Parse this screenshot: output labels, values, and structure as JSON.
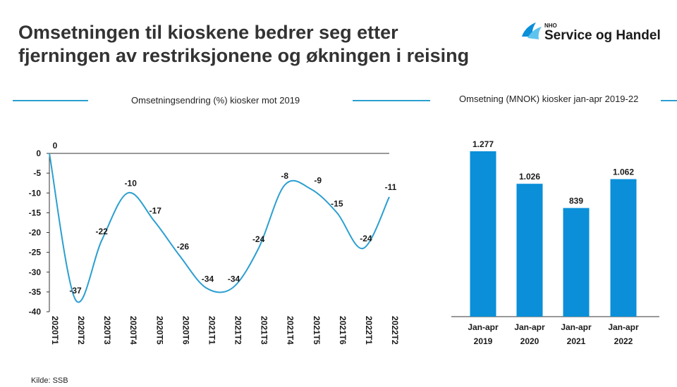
{
  "title_lines": [
    "Omsetningen til kioskene bedrer seg etter",
    "fjerningen av restriksjonene og økningen i reising"
  ],
  "logo": {
    "small": "NHO",
    "name": "Service og Handel"
  },
  "source": "Kilde: SSB",
  "colors": {
    "line": "#2b9fd0",
    "bar": "#0a8fd8",
    "text": "#1a1a1a"
  },
  "chart_data": [
    {
      "type": "line",
      "title": "Omsetningsendring (%) kiosker mot 2019",
      "categories": [
        "2020T1",
        "2020T2",
        "2020T3",
        "2020T4",
        "2020T5",
        "2020T6",
        "2021T1",
        "2021T2",
        "2021T3",
        "2021T4",
        "2021T5",
        "2021T6",
        "2022T1",
        "2022T2"
      ],
      "values": [
        0,
        -37,
        -22,
        -10,
        -17,
        -26,
        -34,
        -34,
        -24,
        -8,
        -9,
        -15,
        -24,
        -11
      ],
      "labels": [
        "0",
        "-37",
        "-22",
        "-10",
        "-17",
        "-26",
        "-34",
        "-34",
        "-24",
        "-8",
        "-9",
        "-15",
        "-24",
        "-11"
      ],
      "yticks": [
        "0",
        "-5",
        "-10",
        "-15",
        "-20",
        "-25",
        "-30",
        "-35",
        "-40"
      ],
      "ylim": [
        -40,
        0
      ],
      "smooth": true
    },
    {
      "type": "bar",
      "title": "Omsetning (MNOK) kiosker jan-apr 2019-22",
      "categories": [
        [
          "Jan-apr",
          "2019"
        ],
        [
          "Jan-apr",
          "2020"
        ],
        [
          "Jan-apr",
          "2021"
        ],
        [
          "Jan-apr",
          "2022"
        ]
      ],
      "values": [
        1277,
        1026,
        839,
        1062
      ],
      "labels": [
        "1.277",
        "1.026",
        "839",
        "1.062"
      ]
    }
  ]
}
